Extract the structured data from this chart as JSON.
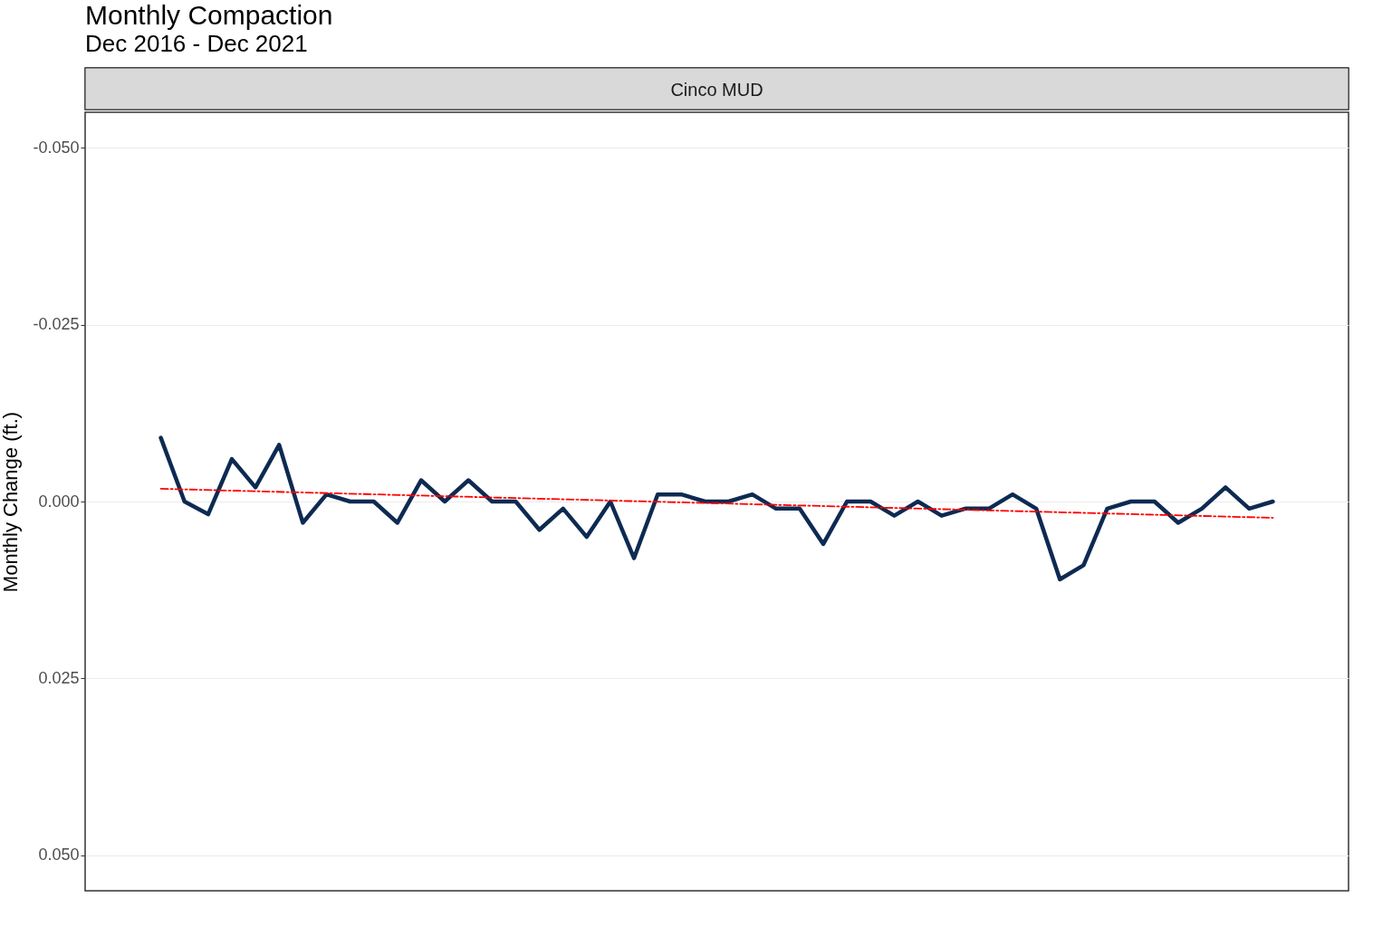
{
  "chart_data": {
    "type": "line",
    "title": "Monthly Compaction",
    "subtitle": "Dec 2016 - Dec 2021",
    "ylabel": "Monthly Change (ft.)",
    "annotations": [
      "Cinco MUD"
    ],
    "categories": [
      null,
      null,
      null,
      null,
      null,
      null,
      null,
      null,
      null,
      null,
      null,
      null,
      null,
      null,
      null,
      null,
      null,
      null,
      null,
      null,
      null,
      null,
      null,
      null,
      null,
      null,
      null,
      null,
      null,
      null,
      null,
      null,
      null,
      null,
      null,
      null,
      null,
      null,
      null,
      null,
      null,
      null,
      null,
      null,
      null,
      null,
      null,
      null
    ],
    "series": [
      {
        "color": "#0d2a52",
        "line_style": "solid",
        "values": [
          -0.009,
          0,
          0.0018,
          -0.006,
          -0.002,
          -0.008,
          0.003,
          -0.001,
          0,
          0,
          0.003,
          -0.003,
          0,
          -0.003,
          0,
          0,
          0.004,
          0.001,
          0.005,
          0,
          0.008,
          -0.001,
          -0.001,
          0,
          0,
          -0.001,
          0.001,
          0.001,
          0.006,
          0,
          0,
          0.002,
          0,
          0.002,
          0.001,
          0.001,
          -0.001,
          0.001,
          0.011,
          0.009,
          0.001,
          0,
          0,
          0.003,
          0.001,
          -0.002,
          0.001,
          0
        ]
      },
      {
        "color": "#ff0000",
        "line_style": "dashed",
        "values": [
          -0.0018,
          null,
          null,
          null,
          null,
          null,
          null,
          null,
          null,
          null,
          null,
          null,
          null,
          null,
          null,
          null,
          null,
          null,
          null,
          null,
          null,
          null,
          null,
          null,
          null,
          null,
          null,
          null,
          null,
          null,
          null,
          null,
          null,
          null,
          null,
          null,
          null,
          null,
          null,
          null,
          null,
          null,
          null,
          null,
          null,
          null,
          null,
          0.0023
        ]
      }
    ],
    "ylim": [
      0.055,
      -0.055
    ],
    "yticks": [
      {
        "value": -0.05,
        "label": "-0.050"
      },
      {
        "value": -0.025,
        "label": "-0.025"
      },
      {
        "value": 0,
        "label": "0.000"
      },
      {
        "value": 0.025,
        "label": "0.025"
      },
      {
        "value": 0.05,
        "label": "0.050"
      }
    ],
    "grid": "y",
    "tick_labels": "y"
  }
}
